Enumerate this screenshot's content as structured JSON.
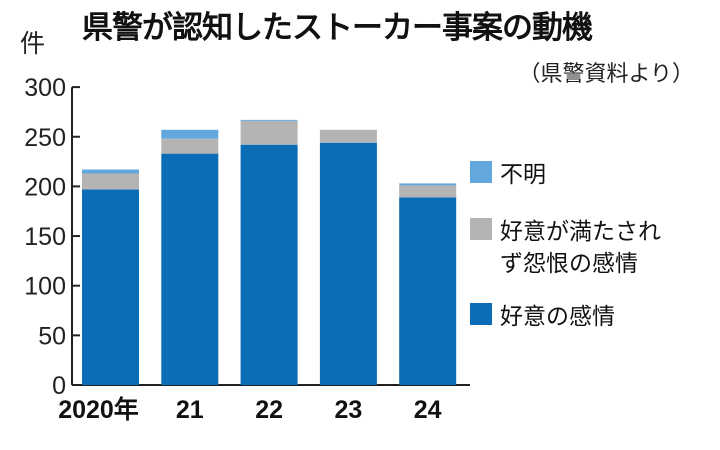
{
  "chart_data": {
    "type": "bar",
    "stacked": true,
    "title": "県警が認知したストーカー事案の動機",
    "subtitle": "（県警資料より）",
    "ylabel": "件",
    "ylim": [
      0,
      300
    ],
    "yticks": [
      0,
      50,
      100,
      150,
      200,
      250,
      300
    ],
    "categories": [
      "2020年",
      "21",
      "22",
      "23",
      "24"
    ],
    "series": [
      {
        "name": "好意の感情",
        "color": "#0a6db6",
        "values": [
          197,
          233,
          242,
          244,
          189
        ]
      },
      {
        "name": "好意が満たされず怨恨の感情",
        "color": "#b4b4b4",
        "values": [
          16,
          15,
          24,
          13,
          12
        ]
      },
      {
        "name": "不明",
        "color": "#62a8dc",
        "values": [
          4,
          9,
          1,
          0,
          2
        ]
      }
    ],
    "legend_position": "right",
    "grid": false
  }
}
